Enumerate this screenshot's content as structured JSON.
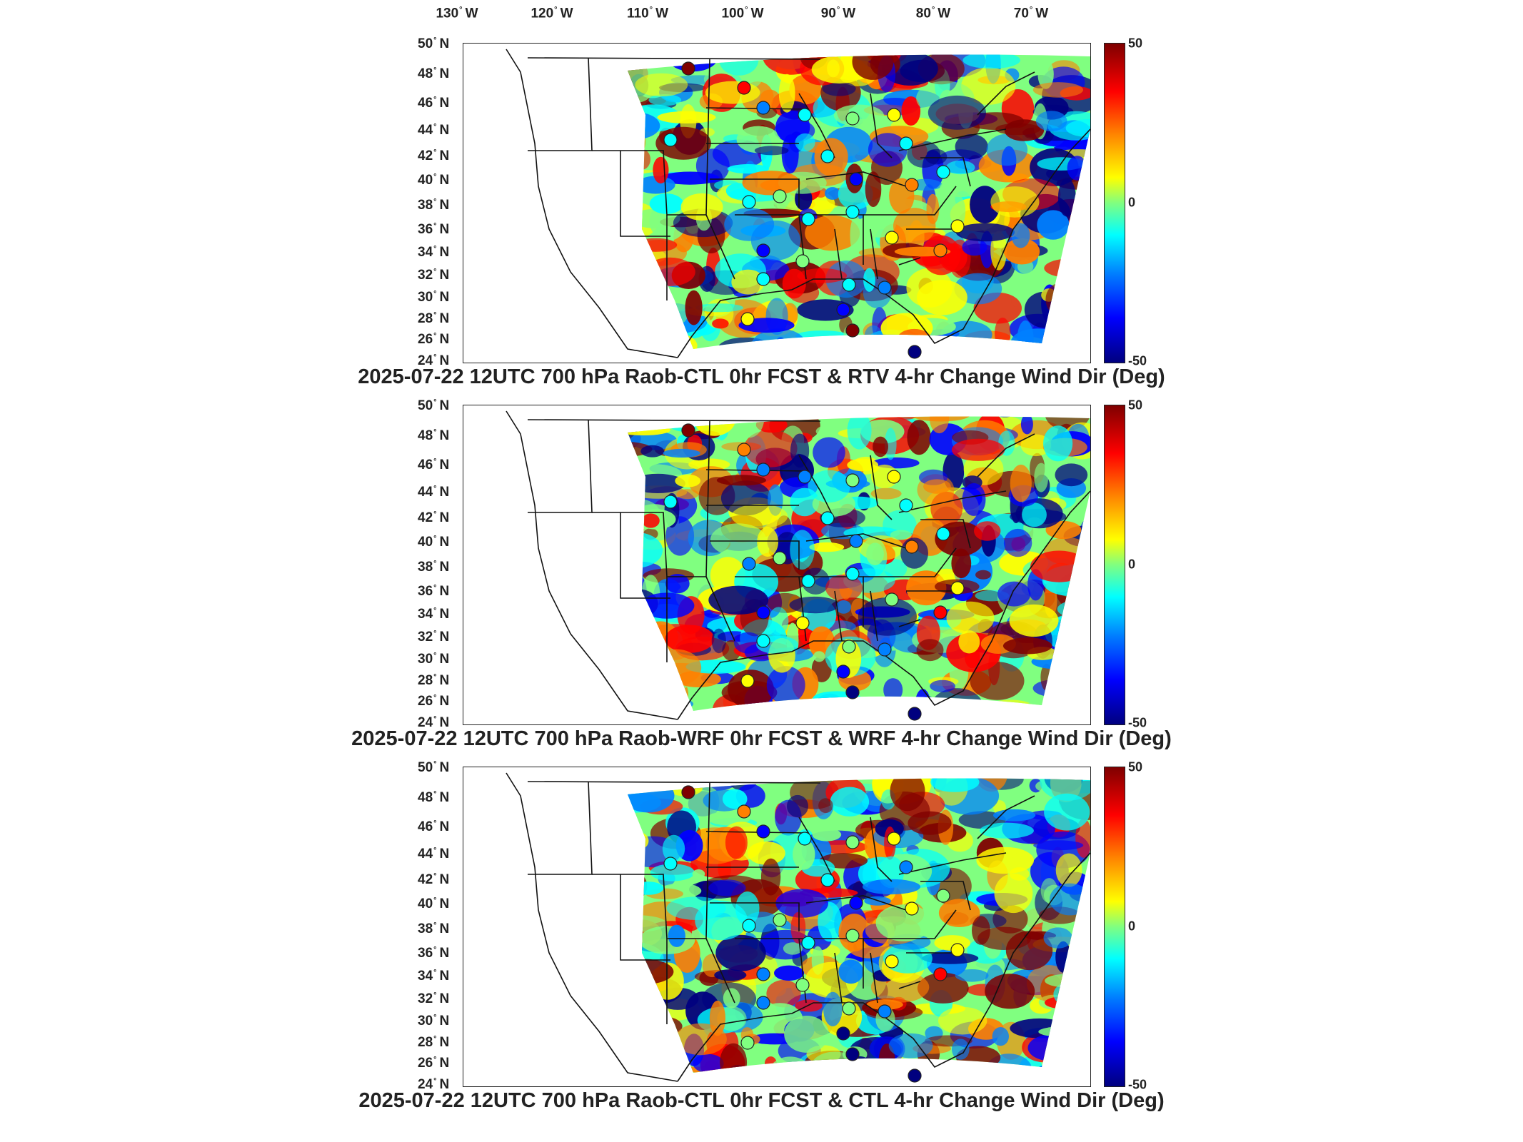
{
  "lon_labels": [
    {
      "deg": "130",
      "dir": "W"
    },
    {
      "deg": "120",
      "dir": "W"
    },
    {
      "deg": "110",
      "dir": "W"
    },
    {
      "deg": "100",
      "dir": "W"
    },
    {
      "deg": "90",
      "dir": "W"
    },
    {
      "deg": "80",
      "dir": "W"
    },
    {
      "deg": "70",
      "dir": "W"
    }
  ],
  "lat_labels": [
    {
      "deg": "50",
      "dir": "N"
    },
    {
      "deg": "48",
      "dir": "N"
    },
    {
      "deg": "46",
      "dir": "N"
    },
    {
      "deg": "44",
      "dir": "N"
    },
    {
      "deg": "42",
      "dir": "N"
    },
    {
      "deg": "40",
      "dir": "N"
    },
    {
      "deg": "38",
      "dir": "N"
    },
    {
      "deg": "36",
      "dir": "N"
    },
    {
      "deg": "34",
      "dir": "N"
    },
    {
      "deg": "32",
      "dir": "N"
    },
    {
      "deg": "30",
      "dir": "N"
    },
    {
      "deg": "28",
      "dir": "N"
    },
    {
      "deg": "26",
      "dir": "N"
    },
    {
      "deg": "24",
      "dir": "N"
    }
  ],
  "colorbar": {
    "max": "50",
    "mid": "0",
    "min": "-50"
  },
  "panels": [
    {
      "title": "2025-07-22 12UTC 700 hPa Raob-CTL 0hr FCST & RTV 4-hr Change Wind Dir (Deg)"
    },
    {
      "title": "2025-07-22 12UTC 700 hPa Raob-WRF 0hr FCST & WRF 4-hr Change Wind Dir (Deg)"
    },
    {
      "title": "2025-07-22 12UTC 700 hPa Raob-CTL 0hr FCST & CTL 4-hr Change Wind Dir (Deg)"
    }
  ],
  "colors": {
    "max": "#7f0000",
    "red": "#ff0000",
    "orange": "#ff8000",
    "yellow": "#ffff00",
    "green": "#80ff80",
    "cyan": "#00ffff",
    "lightblue": "#0080ff",
    "blue": "#0000ff",
    "min": "#00007f"
  }
}
